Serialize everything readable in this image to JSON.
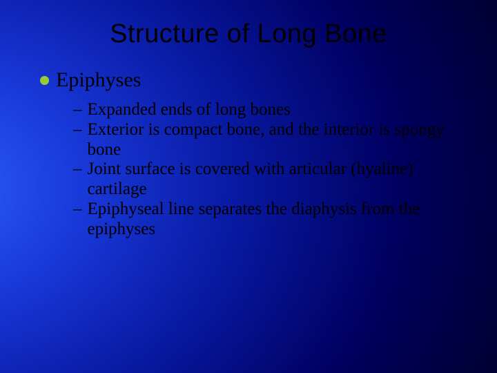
{
  "slide": {
    "title": "Structure of Long Bone",
    "background": {
      "gradient_type": "radial",
      "inner_color": "#3060ff",
      "mid_color": "#0818a0",
      "outer_color": "#000030"
    },
    "title_style": {
      "font_family": "Arial",
      "font_size_pt": 38,
      "color": "#000000"
    },
    "body_style": {
      "font_family": "Times New Roman",
      "level1_font_size_pt": 30,
      "level2_font_size_pt": 25,
      "text_color": "#000000",
      "bullet_color": "#99cc33",
      "bullet_shape": "circle",
      "sub_bullet_glyph": "–"
    },
    "bullets": [
      {
        "text": "Epiphyses",
        "sub": [
          "Expanded ends of long bones",
          "Exterior is compact bone, and the interior is spongy bone",
          "Joint surface is covered with articular (hyaline) cartilage",
          "Epiphyseal line separates the diaphysis from the epiphyses"
        ]
      }
    ]
  }
}
